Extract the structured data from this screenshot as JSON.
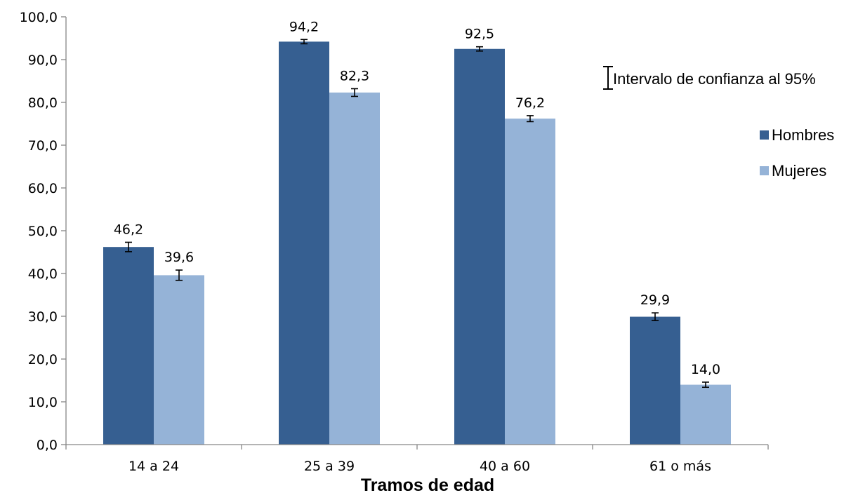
{
  "chart_data": {
    "type": "bar",
    "title": "",
    "xlabel": "Tramos de edad",
    "ylabel": "",
    "ylim": [
      0,
      100
    ],
    "ytick_step": 10,
    "grid": false,
    "categories": [
      "14 a 24",
      "25 a 39",
      "40 a 60",
      "61 o más"
    ],
    "series": [
      {
        "name": "Hombres",
        "color": "#365f91",
        "values": [
          46.2,
          94.2,
          92.5,
          29.9
        ],
        "labels": [
          "46,2",
          "94,2",
          "92,5",
          "29,9"
        ],
        "ci": [
          [
            45.1,
            47.3
          ],
          [
            93.7,
            94.7
          ],
          [
            92.0,
            93.0
          ],
          [
            29.0,
            30.8
          ]
        ]
      },
      {
        "name": "Mujeres",
        "color": "#95b3d7",
        "values": [
          39.6,
          82.3,
          76.2,
          14.0
        ],
        "labels": [
          "39,6",
          "82,3",
          "76,2",
          "14,0"
        ],
        "ci": [
          [
            38.4,
            40.8
          ],
          [
            81.4,
            83.2
          ],
          [
            75.5,
            76.9
          ],
          [
            13.4,
            14.6
          ]
        ]
      }
    ],
    "legend": {
      "position": "right",
      "error_bar_label": "Intervalo de confianza al 95%"
    }
  }
}
